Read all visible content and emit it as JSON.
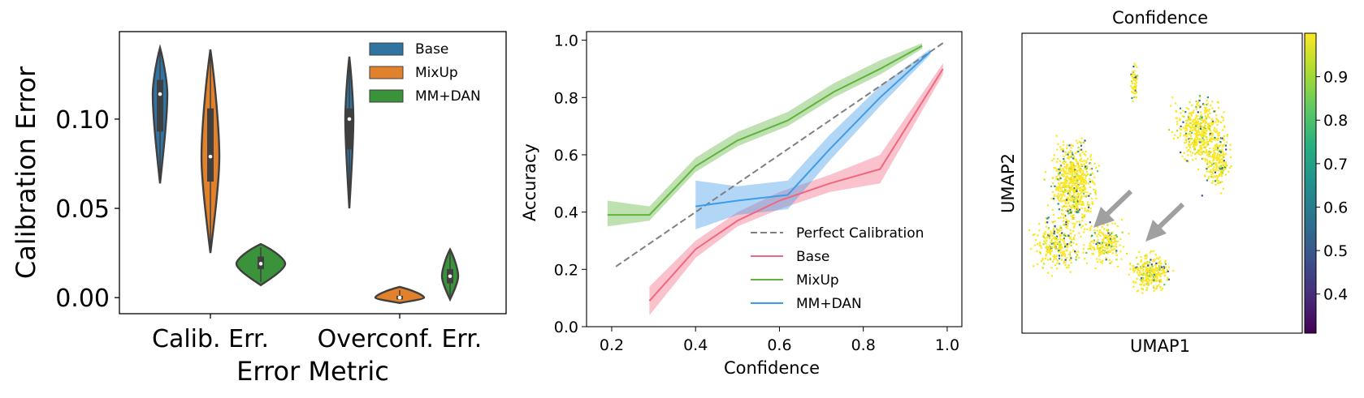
{
  "colors": {
    "base": "#3274a1",
    "mixup": "#e1812c",
    "mmdan": "#3a923a",
    "violin_edge": "#3f3f3f",
    "line_base": "#f0677f",
    "line_mixup": "#5fb53c",
    "line_mmdan": "#3e9be8",
    "perfect": "#808080",
    "arrow": "#a0a0a0"
  },
  "chart_data": [
    {
      "type": "violin",
      "xlabel": "Error Metric",
      "ylabel": "Calibration Error",
      "categories": [
        "Calib. Err.",
        "Overconf. Err."
      ],
      "ylim": [
        -0.009,
        0.149
      ],
      "yticks": [
        0.0,
        0.05,
        0.1
      ],
      "ytick_labels": [
        "0.00",
        "0.05",
        "0.10"
      ],
      "legend": {
        "placement": "top-right",
        "entries": [
          "Base",
          "MixUp",
          "MM+DAN"
        ]
      },
      "series": [
        {
          "name": "Base",
          "category": "Calib. Err.",
          "min": 0.064,
          "q1": 0.093,
          "median": 0.114,
          "q3": 0.122,
          "max": 0.14
        },
        {
          "name": "MixUp",
          "category": "Calib. Err.",
          "min": 0.025,
          "q1": 0.065,
          "median": 0.079,
          "q3": 0.106,
          "max": 0.139
        },
        {
          "name": "MM+DAN",
          "category": "Calib. Err.",
          "min": 0.007,
          "q1": 0.016,
          "median": 0.019,
          "q3": 0.023,
          "max": 0.03
        },
        {
          "name": "Base",
          "category": "Overconf. Err.",
          "min": 0.05,
          "q1": 0.083,
          "median": 0.1,
          "q3": 0.106,
          "max": 0.135
        },
        {
          "name": "MixUp",
          "category": "Overconf. Err.",
          "min": -0.003,
          "q1": -0.001,
          "median": 0.0,
          "q3": 0.001,
          "max": 0.006
        },
        {
          "name": "MM+DAN",
          "category": "Overconf. Err.",
          "min": -0.001,
          "q1": 0.008,
          "median": 0.012,
          "q3": 0.016,
          "max": 0.027
        }
      ]
    },
    {
      "type": "line",
      "xlabel": "Confidence",
      "ylabel": "Accuracy",
      "xlim": [
        0.14,
        1.035
      ],
      "ylim": [
        0.0,
        1.03
      ],
      "xticks": [
        0.2,
        0.4,
        0.6,
        0.8,
        1.0
      ],
      "xtick_labels": [
        "0.2",
        "0.4",
        "0.6",
        "0.8",
        "1.0"
      ],
      "yticks": [
        0.0,
        0.2,
        0.4,
        0.6,
        0.8,
        1.0
      ],
      "ytick_labels": [
        "0.0",
        "0.2",
        "0.4",
        "0.6",
        "0.8",
        "1.0"
      ],
      "legend": {
        "placement": "lower-right",
        "entries": [
          "Perfect Calibration",
          "Base",
          "MixUp",
          "MM+DAN"
        ]
      },
      "series": [
        {
          "name": "Perfect Calibration",
          "style": "dashed",
          "x": [
            0.21,
            0.99
          ],
          "y": [
            0.21,
            0.99
          ]
        },
        {
          "name": "Base",
          "x": [
            0.29,
            0.4,
            0.5,
            0.6,
            0.72,
            0.84,
            0.99
          ],
          "y": [
            0.09,
            0.27,
            0.37,
            0.44,
            0.5,
            0.55,
            0.9
          ],
          "lower": [
            0.04,
            0.24,
            0.35,
            0.41,
            0.47,
            0.5,
            0.88
          ],
          "upper": [
            0.14,
            0.3,
            0.4,
            0.47,
            0.53,
            0.6,
            0.92
          ]
        },
        {
          "name": "MixUp",
          "x": [
            0.19,
            0.29,
            0.4,
            0.5,
            0.62,
            0.73,
            0.84,
            0.94
          ],
          "y": [
            0.39,
            0.39,
            0.56,
            0.65,
            0.72,
            0.82,
            0.9,
            0.98
          ],
          "lower": [
            0.35,
            0.37,
            0.54,
            0.63,
            0.7,
            0.8,
            0.88,
            0.97
          ],
          "upper": [
            0.44,
            0.42,
            0.59,
            0.68,
            0.75,
            0.85,
            0.93,
            0.99
          ]
        },
        {
          "name": "MM+DAN",
          "x": [
            0.4,
            0.5,
            0.62,
            0.72,
            0.84,
            0.96
          ],
          "y": [
            0.42,
            0.44,
            0.46,
            0.62,
            0.8,
            0.96
          ],
          "lower": [
            0.34,
            0.39,
            0.41,
            0.58,
            0.77,
            0.95
          ],
          "upper": [
            0.51,
            0.49,
            0.51,
            0.67,
            0.84,
            0.97
          ]
        }
      ]
    },
    {
      "type": "scatter",
      "title": "Confidence",
      "xlabel": "UMAP1",
      "ylabel": "UMAP2",
      "colorbar": {
        "colormap": "viridis",
        "ticks": [
          0.4,
          0.5,
          0.6,
          0.7,
          0.8,
          0.9
        ],
        "tick_labels": [
          "0.4",
          "0.5",
          "0.6",
          "0.7",
          "0.8",
          "0.9"
        ],
        "range": [
          0.31,
          1.0
        ]
      },
      "annotations": [
        "gray arrow pointing to low-confidence region (left cluster)",
        "gray arrow pointing to low-confidence region (center cluster)"
      ]
    }
  ]
}
